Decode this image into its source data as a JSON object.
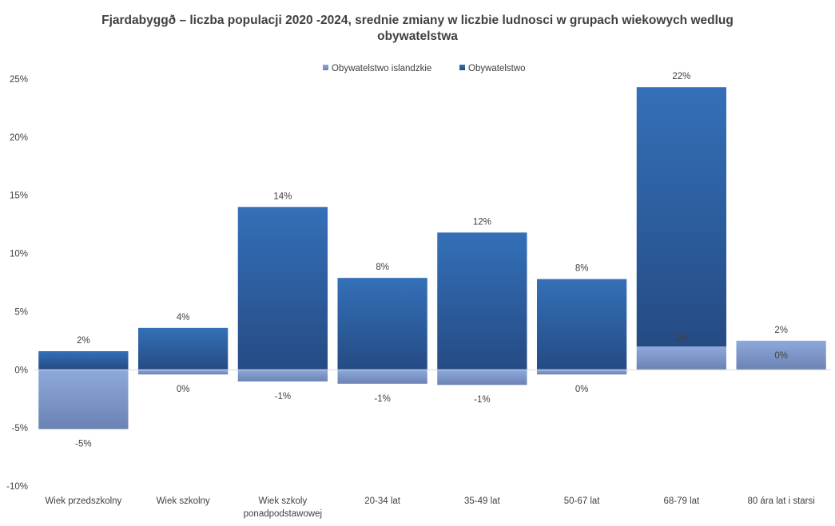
{
  "chart_data": {
    "type": "bar",
    "title_line1": "Fjardabyggð  – liczba populacji 2020 -2024, srednie zmiany w liczbie ludnosci w grupach wiekowych wedlug",
    "title_line2": "obywatelstwa",
    "xlabel": "",
    "ylabel": "",
    "ylim": [
      -10,
      25
    ],
    "yticks": [
      "25%",
      "20%",
      "15%",
      "10%",
      "5%",
      "0%",
      "-5%",
      "-10%"
    ],
    "ytick_values": [
      25,
      20,
      15,
      10,
      5,
      0,
      -5,
      -10
    ],
    "legend_position": "top-center",
    "categories": [
      [
        "Wiek przedszkolny"
      ],
      [
        "Wiek szkolny"
      ],
      [
        "Wiek szkoly",
        "ponadpodstawowej"
      ],
      [
        "20-34 lat"
      ],
      [
        "35-49 lat"
      ],
      [
        "50-67 lat"
      ],
      [
        "68-79 lat"
      ],
      [
        "80 ára lat i starsi"
      ]
    ],
    "series": [
      {
        "name": "Obywatelstwo islandzkie",
        "color": "#8ea5d6",
        "values": [
          -5.1,
          -0.4,
          -1.0,
          -1.2,
          -1.3,
          -0.4,
          2.0,
          2.5
        ],
        "labels": [
          "-5%",
          "0%",
          "-1%",
          "-1%",
          "-1%",
          "0%",
          "2%",
          "2%"
        ]
      },
      {
        "name": "Obywatelstwo",
        "color": "#2f5d9e",
        "values": [
          1.6,
          3.6,
          14.0,
          7.9,
          11.8,
          7.8,
          22.3,
          0.0
        ],
        "labels": [
          "2%",
          "4%",
          "14%",
          "8%",
          "12%",
          "8%",
          "22%",
          "0%"
        ]
      }
    ]
  }
}
